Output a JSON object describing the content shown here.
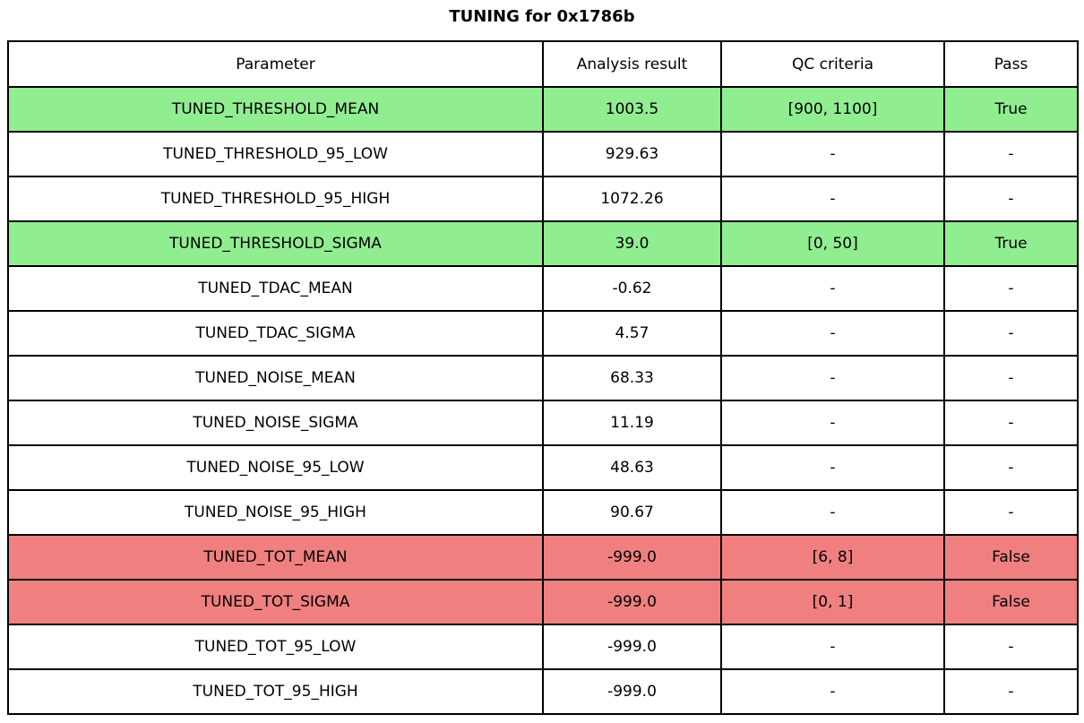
{
  "title": "TUNING for 0x1786b",
  "colors": {
    "pass_true": "#90EE90",
    "pass_false": "#F08080",
    "neutral": "#FFFFFF",
    "border": "#000000"
  },
  "chart_data": {
    "type": "table",
    "title": "TUNING for 0x1786b",
    "columns": [
      "Parameter",
      "Analysis result",
      "QC criteria",
      "Pass"
    ],
    "rows": [
      {
        "param": "TUNED_THRESHOLD_MEAN",
        "result": "1003.5",
        "qc": "[900, 1100]",
        "pass": "True",
        "status": "pass"
      },
      {
        "param": "TUNED_THRESHOLD_95_LOW",
        "result": "929.63",
        "qc": "-",
        "pass": "-",
        "status": "none"
      },
      {
        "param": "TUNED_THRESHOLD_95_HIGH",
        "result": "1072.26",
        "qc": "-",
        "pass": "-",
        "status": "none"
      },
      {
        "param": "TUNED_THRESHOLD_SIGMA",
        "result": "39.0",
        "qc": "[0, 50]",
        "pass": "True",
        "status": "pass"
      },
      {
        "param": "TUNED_TDAC_MEAN",
        "result": "-0.62",
        "qc": "-",
        "pass": "-",
        "status": "none"
      },
      {
        "param": "TUNED_TDAC_SIGMA",
        "result": "4.57",
        "qc": "-",
        "pass": "-",
        "status": "none"
      },
      {
        "param": "TUNED_NOISE_MEAN",
        "result": "68.33",
        "qc": "-",
        "pass": "-",
        "status": "none"
      },
      {
        "param": "TUNED_NOISE_SIGMA",
        "result": "11.19",
        "qc": "-",
        "pass": "-",
        "status": "none"
      },
      {
        "param": "TUNED_NOISE_95_LOW",
        "result": "48.63",
        "qc": "-",
        "pass": "-",
        "status": "none"
      },
      {
        "param": "TUNED_NOISE_95_HIGH",
        "result": "90.67",
        "qc": "-",
        "pass": "-",
        "status": "none"
      },
      {
        "param": "TUNED_TOT_MEAN",
        "result": "-999.0",
        "qc": "[6, 8]",
        "pass": "False",
        "status": "fail"
      },
      {
        "param": "TUNED_TOT_SIGMA",
        "result": "-999.0",
        "qc": "[0, 1]",
        "pass": "False",
        "status": "fail"
      },
      {
        "param": "TUNED_TOT_95_LOW",
        "result": "-999.0",
        "qc": "-",
        "pass": "-",
        "status": "none"
      },
      {
        "param": "TUNED_TOT_95_HIGH",
        "result": "-999.0",
        "qc": "-",
        "pass": "-",
        "status": "none"
      }
    ]
  }
}
